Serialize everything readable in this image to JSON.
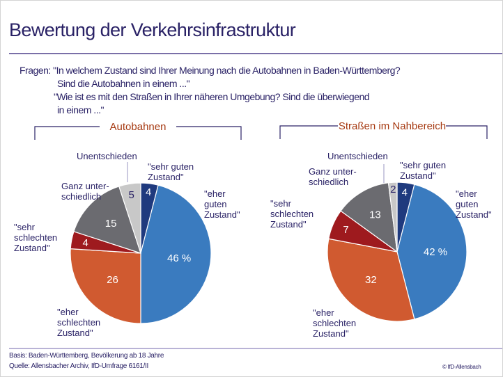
{
  "title": "Bewertung der Verkehrsinfrastruktur",
  "question": {
    "lines": [
      "Fragen: \"In welchem Zustand sind Ihrer Meinung nach die Autobahnen in Baden-Württemberg?",
      "Sind die Autobahnen in einem ...\"",
      "\"Wie ist es mit den Straßen in Ihrer näheren Umgebung? Sind die überwiegend",
      "in einem ...\""
    ]
  },
  "footer": {
    "basis": "Basis: Baden-Württemberg, Bevölkerung ab 18 Jahre",
    "source": "Quelle: Allensbacher Archiv, IfD-Umfrage 6161/II",
    "copyright": "© IfD-Allensbach"
  },
  "colors": {
    "sehr_gut": "#1f3a7e",
    "eher_gut": "#3a7bbf",
    "eher_schlecht": "#d05a30",
    "sehr_schlecht": "#9e1a1e",
    "ganz_unterschiedlich": "#6b6b70",
    "unentschieden": "#c8c8c8"
  },
  "chart_data": [
    {
      "type": "pie",
      "title": "Autobahnen",
      "unit": "%",
      "slices": [
        {
          "key": "sehr_gut",
          "label": "\"sehr guten Zustand\"",
          "value": 4,
          "display": "4"
        },
        {
          "key": "eher_gut",
          "label": "\"eher guten Zustand\"",
          "value": 46,
          "display": "46 %"
        },
        {
          "key": "eher_schlecht",
          "label": "\"eher schlechten Zustand\"",
          "value": 26,
          "display": "26"
        },
        {
          "key": "sehr_schlecht",
          "label": "\"sehr schlechten Zustand\"",
          "value": 4,
          "display": "4"
        },
        {
          "key": "ganz_unterschiedlich",
          "label": "Ganz unter-schiedlich",
          "value": 15,
          "display": "15"
        },
        {
          "key": "unentschieden",
          "label": "Unentschieden",
          "value": 5,
          "display": "5"
        }
      ]
    },
    {
      "type": "pie",
      "title": "Straßen im Nahbereich",
      "unit": "%",
      "slices": [
        {
          "key": "sehr_gut",
          "label": "\"sehr guten Zustand\"",
          "value": 4,
          "display": "4"
        },
        {
          "key": "eher_gut",
          "label": "\"eher guten Zustand\"",
          "value": 42,
          "display": "42 %"
        },
        {
          "key": "eher_schlecht",
          "label": "\"eher schlechten Zustand\"",
          "value": 32,
          "display": "32"
        },
        {
          "key": "sehr_schlecht",
          "label": "\"sehr schlechten Zustand\"",
          "value": 7,
          "display": "7"
        },
        {
          "key": "ganz_unterschiedlich",
          "label": "Ganz unter-schiedlich",
          "value": 13,
          "display": "13"
        },
        {
          "key": "unentschieden",
          "label": "Unentschieden",
          "value": 2,
          "display": "2"
        }
      ]
    }
  ],
  "labels": {
    "sehr_gut": [
      "\"sehr guten",
      "Zustand\""
    ],
    "eher_gut": [
      "\"eher",
      "guten",
      "Zustand\""
    ],
    "eher_schlecht": [
      "\"eher",
      "schlechten",
      "Zustand\""
    ],
    "sehr_schlecht": [
      "\"sehr",
      "schlechten",
      "Zustand\""
    ],
    "ganz_unterschiedlich": [
      "Ganz unter-",
      "schiedlich"
    ],
    "unentschieden": [
      "Unentschieden"
    ]
  }
}
